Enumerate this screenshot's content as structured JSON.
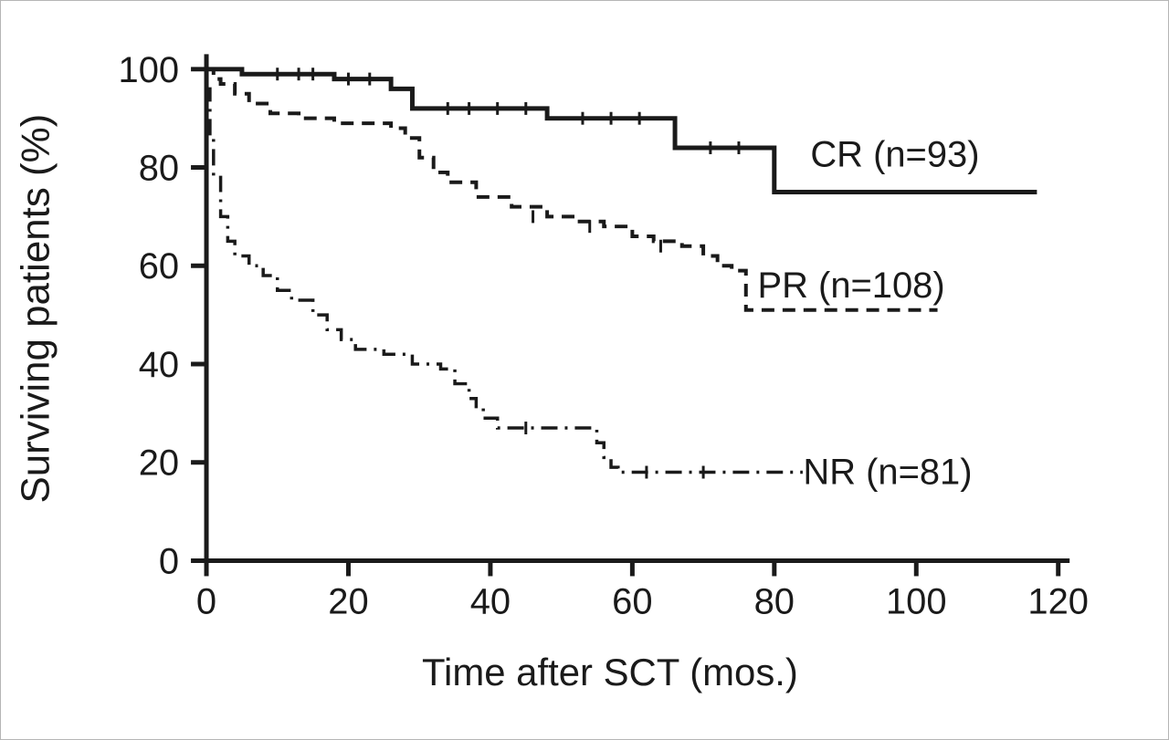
{
  "chart_data": {
    "type": "line",
    "subtype": "kaplan-meier-step",
    "title": "",
    "xlabel": "Time after SCT (mos.)",
    "ylabel": "Surviving patients (%)",
    "xlim": [
      0,
      120
    ],
    "ylim": [
      0,
      100
    ],
    "xticks": [
      0,
      20,
      40,
      60,
      80,
      100,
      120
    ],
    "yticks": [
      0,
      20,
      40,
      60,
      80,
      100
    ],
    "grid": false,
    "legend_position": "inline-right-of-curves",
    "color": "#1a1a1a",
    "series": [
      {
        "id": "cr",
        "name": "CR",
        "label": "CR (n=93)",
        "n": 93,
        "line_style": "solid",
        "points": [
          [
            0,
            100
          ],
          [
            5,
            99
          ],
          [
            18,
            98
          ],
          [
            26,
            96
          ],
          [
            29,
            92
          ],
          [
            48,
            90
          ],
          [
            66,
            84
          ],
          [
            80,
            75
          ],
          [
            117,
            75
          ]
        ],
        "censor_marks": [
          [
            10,
            99
          ],
          [
            13,
            99
          ],
          [
            15,
            99
          ],
          [
            20,
            98
          ],
          [
            23,
            98
          ],
          [
            34,
            92
          ],
          [
            37,
            92
          ],
          [
            41,
            92
          ],
          [
            45,
            92
          ],
          [
            53,
            90
          ],
          [
            57,
            90
          ],
          [
            61,
            90
          ],
          [
            71,
            84
          ],
          [
            75,
            84
          ]
        ]
      },
      {
        "id": "pr",
        "name": "PR",
        "label": "PR (n=108)",
        "n": 108,
        "line_style": "dashed",
        "points": [
          [
            0,
            100
          ],
          [
            1,
            98
          ],
          [
            2,
            97
          ],
          [
            4,
            95
          ],
          [
            6,
            93
          ],
          [
            9,
            91
          ],
          [
            13,
            90
          ],
          [
            18,
            89
          ],
          [
            26,
            88
          ],
          [
            28,
            86
          ],
          [
            30,
            82
          ],
          [
            32,
            79
          ],
          [
            34,
            77
          ],
          [
            38,
            74
          ],
          [
            43,
            72
          ],
          [
            48,
            70
          ],
          [
            52,
            69
          ],
          [
            56,
            68
          ],
          [
            60,
            66
          ],
          [
            63,
            65
          ],
          [
            67,
            64
          ],
          [
            70,
            62
          ],
          [
            72,
            60
          ],
          [
            74,
            59
          ],
          [
            76,
            51
          ],
          [
            103,
            51
          ]
        ],
        "censor_marks": [
          [
            46,
            70
          ],
          [
            54,
            68
          ],
          [
            64,
            64
          ]
        ]
      },
      {
        "id": "nr",
        "name": "NR",
        "label": "NR (n=81)",
        "n": 81,
        "line_style": "dash-dot",
        "points": [
          [
            0,
            96
          ],
          [
            0.5,
            86
          ],
          [
            1,
            78
          ],
          [
            2,
            70
          ],
          [
            3,
            65
          ],
          [
            4,
            62
          ],
          [
            6,
            60
          ],
          [
            8,
            58
          ],
          [
            10,
            55
          ],
          [
            12,
            53
          ],
          [
            15,
            50
          ],
          [
            17,
            47
          ],
          [
            19,
            45
          ],
          [
            21,
            43
          ],
          [
            25,
            42
          ],
          [
            29,
            40
          ],
          [
            33,
            39
          ],
          [
            35,
            36
          ],
          [
            37,
            33
          ],
          [
            38,
            31
          ],
          [
            39,
            29
          ],
          [
            41,
            27
          ],
          [
            53,
            27
          ],
          [
            55,
            24
          ],
          [
            56,
            21
          ],
          [
            57,
            19
          ],
          [
            58,
            18
          ],
          [
            84,
            18
          ]
        ],
        "censor_marks": [
          [
            45,
            27
          ],
          [
            62,
            18
          ],
          [
            70,
            18
          ]
        ]
      }
    ]
  }
}
